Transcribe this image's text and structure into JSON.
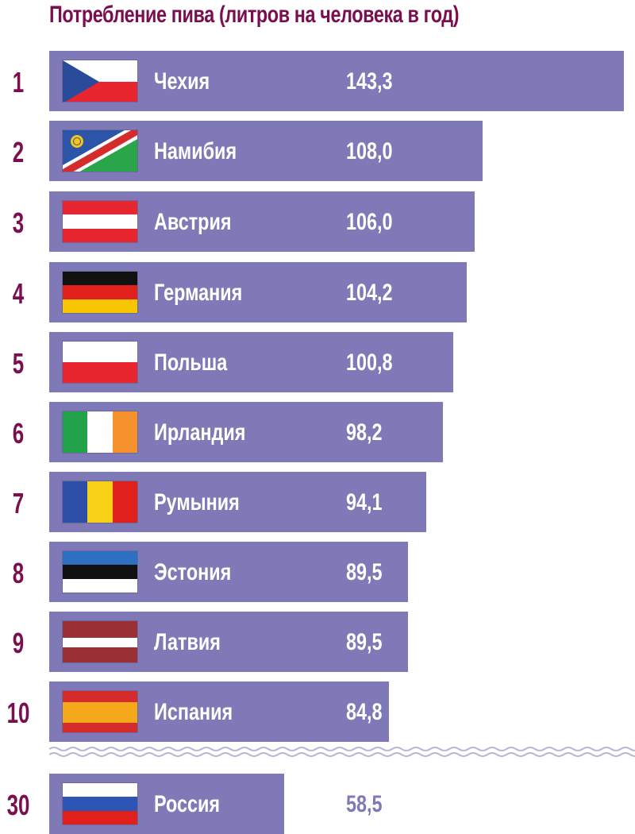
{
  "colors": {
    "title": "#7a0f4f",
    "rank": "#7a0f4f",
    "bar": "#7f79b8",
    "label": "#ffffff",
    "outside_value": "#7f79b8",
    "wave": "#b9b5d8"
  },
  "chart_data": {
    "type": "bar",
    "orientation": "horizontal",
    "title": "Потребление пива (литров на человека в год)",
    "xlim": [
      0,
      143.3
    ],
    "rows": [
      {
        "rank": "1",
        "country": "Чехия",
        "value": 143.3,
        "value_label": "143,3",
        "flag": "czech-flag"
      },
      {
        "rank": "2",
        "country": "Намибия",
        "value": 108.0,
        "value_label": "108,0",
        "flag": "namibia-flag"
      },
      {
        "rank": "3",
        "country": "Австрия",
        "value": 106.0,
        "value_label": "106,0",
        "flag": "austria-flag"
      },
      {
        "rank": "4",
        "country": "Германия",
        "value": 104.2,
        "value_label": "104,2",
        "flag": "germany-flag"
      },
      {
        "rank": "5",
        "country": "Польша",
        "value": 100.8,
        "value_label": "100,8",
        "flag": "poland-flag"
      },
      {
        "rank": "6",
        "country": "Ирландия",
        "value": 98.2,
        "value_label": "98,2",
        "flag": "ireland-flag"
      },
      {
        "rank": "7",
        "country": "Румыния",
        "value": 94.1,
        "value_label": "94,1",
        "flag": "romania-flag"
      },
      {
        "rank": "8",
        "country": "Эстония",
        "value": 89.5,
        "value_label": "89,5",
        "flag": "estonia-flag"
      },
      {
        "rank": "9",
        "country": "Латвия",
        "value": 89.5,
        "value_label": "89,5",
        "flag": "latvia-flag"
      },
      {
        "rank": "10",
        "country": "Испания",
        "value": 84.8,
        "value_label": "84,8",
        "flag": "spain-flag"
      },
      {
        "rank": "30",
        "country": "Россия",
        "value": 58.5,
        "value_label": "58,5",
        "flag": "russia-flag",
        "value_outside_bar": true
      }
    ],
    "break_between_ranks": [
      "10",
      "30"
    ]
  }
}
